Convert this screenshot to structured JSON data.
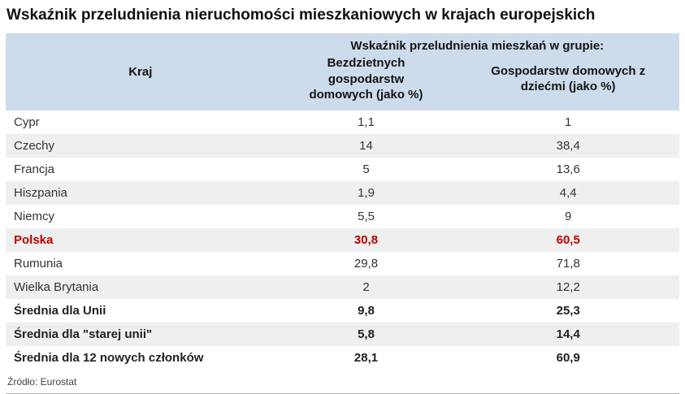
{
  "title": "Wskaźnik przeludnienia nieruchomości mieszkaniowych w krajach europejskich",
  "source_note": "Źródło: Eurostat",
  "colors": {
    "header_bg": "#cddcec",
    "row_alt_bg": "#efefef",
    "highlight_text": "#c00000"
  },
  "chart_data": {
    "type": "table",
    "title": "Wskaźnik przeludnienia nieruchomości mieszkaniowych w krajach europejskich",
    "group_header": "Wskaźnik przeludnienia mieszkań w grupie:",
    "columns": [
      "Kraj",
      "Bezdzietnych gospodarstw domowych (jako %)",
      "Gospodarstw domowych z dziećmi (jako %)"
    ],
    "rows": [
      {
        "kraj": "Cypr",
        "childless": "1,1",
        "with_children": "1"
      },
      {
        "kraj": "Czechy",
        "childless": "14",
        "with_children": "38,4"
      },
      {
        "kraj": "Francja",
        "childless": "5",
        "with_children": "13,6"
      },
      {
        "kraj": "Hiszpania",
        "childless": "1,9",
        "with_children": "4,4"
      },
      {
        "kraj": "Niemcy",
        "childless": "5,5",
        "with_children": "9"
      },
      {
        "kraj": "Polska",
        "childless": "30,8",
        "with_children": "60,5"
      },
      {
        "kraj": "Rumunia",
        "childless": "29,8",
        "with_children": "71,8"
      },
      {
        "kraj": "Wielka Brytania",
        "childless": "2",
        "with_children": "12,2"
      },
      {
        "kraj": "Średnia dla Unii",
        "childless": "9,8",
        "with_children": "25,3"
      },
      {
        "kraj": "Średnia dla \"starej unii\"",
        "childless": "5,8",
        "with_children": "14,4"
      },
      {
        "kraj": "Średnia dla 12 nowych członków",
        "childless": "28,1",
        "with_children": "60,9"
      }
    ],
    "highlighted_row": "Polska",
    "summary_rows": [
      "Średnia dla Unii",
      "Średnia dla \"starej unii\"",
      "Średnia dla 12 nowych członków"
    ],
    "source": "Źródło: Eurostat"
  }
}
